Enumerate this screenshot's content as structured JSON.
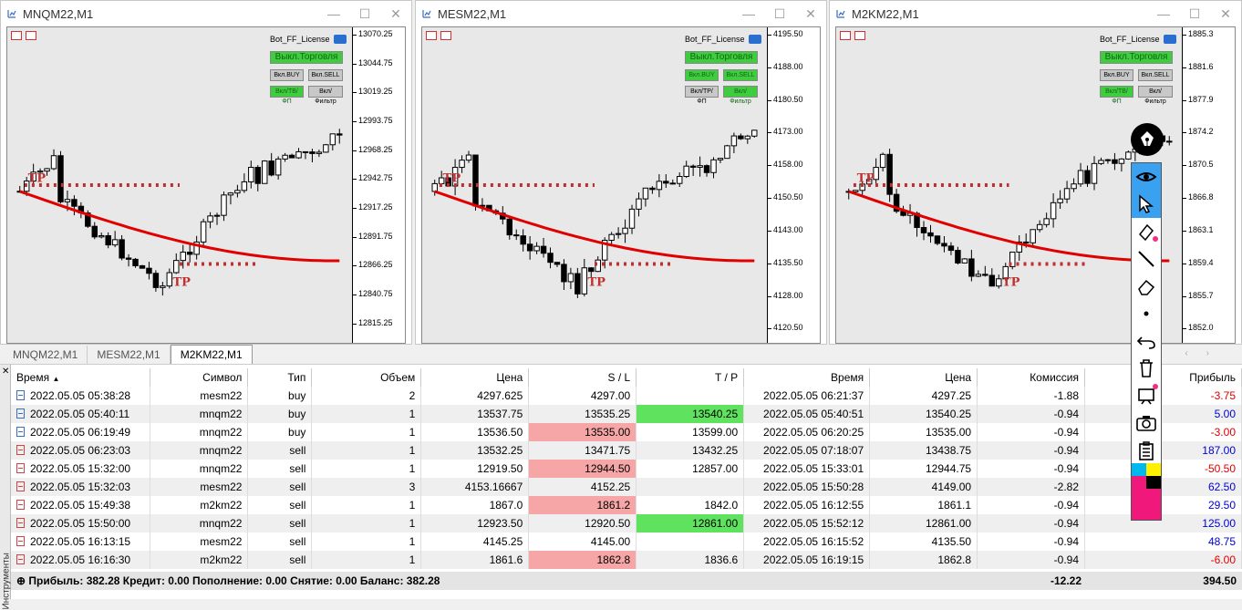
{
  "windows": [
    {
      "title": "MNQM22,M1",
      "ticks": [
        "13070.25",
        "13044.75",
        "13019.25",
        "12993.75",
        "12968.25",
        "12942.75",
        "12917.25",
        "12891.75",
        "12866.25",
        "12840.75",
        "12815.25"
      ]
    },
    {
      "title": "MESM22,M1",
      "ticks": [
        "4195.50",
        "4188.00",
        "4180.50",
        "4173.00",
        "4158.00",
        "4150.50",
        "4143.00",
        "4135.50",
        "4128.00",
        "4120.50"
      ]
    },
    {
      "title": "M2KM22,M1",
      "ticks": [
        "1885.3",
        "1881.6",
        "1877.9",
        "1874.2",
        "1870.5",
        "1866.8",
        "1863.1",
        "1859.4",
        "1855.7",
        "1852.0"
      ]
    }
  ],
  "panel": {
    "title": "Bot_FF_License",
    "trade_btn": "Выкл.Торговля",
    "buy_btn": "Вкл.BUY",
    "sell_btn": "Вкл.SELL",
    "btn_a": "Вкл/ТВ/ФП",
    "btn_b": "Вкл/Фильтр",
    "btn_c": "Вкл/ТР/ФП"
  },
  "chart_labels": {
    "tp": "TP",
    "p": "P"
  },
  "tabs": [
    "MNQM22,M1",
    "MESM22,M1",
    "M2KM22,M1"
  ],
  "active_tab": "M2KM22,M1",
  "side_label": "Инструменты",
  "columns": [
    "Время",
    "Символ",
    "Тип",
    "Объем",
    "Цена",
    "S / L",
    "T / P",
    "Время",
    "Цена",
    "Комиссия",
    "Прибыль"
  ],
  "rows": [
    {
      "t1": "2022.05.05 05:38:28",
      "sym": "mesm22",
      "type": "buy",
      "vol": "2",
      "p1": "4297.625",
      "sl": "4297.00",
      "tp": "",
      "t2": "2022.05.05 06:21:37",
      "p2": "4297.25",
      "comm": "-1.88",
      "profit": "-3.75"
    },
    {
      "t1": "2022.05.05 05:40:11",
      "sym": "mnqm22",
      "type": "buy",
      "vol": "1",
      "p1": "13537.75",
      "sl": "13535.25",
      "tp": "13540.25",
      "t2": "2022.05.05 05:40:51",
      "p2": "13540.25",
      "comm": "-0.94",
      "profit": "5.00"
    },
    {
      "t1": "2022.05.05 06:19:49",
      "sym": "mnqm22",
      "type": "buy",
      "vol": "1",
      "p1": "13536.50",
      "sl": "13535.00",
      "tp": "13599.00",
      "t2": "2022.05.05 06:20:25",
      "p2": "13535.00",
      "comm": "-0.94",
      "profit": "-3.00"
    },
    {
      "t1": "2022.05.05 06:23:03",
      "sym": "mnqm22",
      "type": "sell",
      "vol": "1",
      "p1": "13532.25",
      "sl": "13471.75",
      "tp": "13432.25",
      "t2": "2022.05.05 07:18:07",
      "p2": "13438.75",
      "comm": "-0.94",
      "profit": "187.00"
    },
    {
      "t1": "2022.05.05 15:32:00",
      "sym": "mnqm22",
      "type": "sell",
      "vol": "1",
      "p1": "12919.50",
      "sl": "12944.50",
      "tp": "12857.00",
      "t2": "2022.05.05 15:33:01",
      "p2": "12944.75",
      "comm": "-0.94",
      "profit": "-50.50"
    },
    {
      "t1": "2022.05.05 15:32:03",
      "sym": "mesm22",
      "type": "sell",
      "vol": "3",
      "p1": "4153.16667",
      "sl": "4152.25",
      "tp": "",
      "t2": "2022.05.05 15:50:28",
      "p2": "4149.00",
      "comm": "-2.82",
      "profit": "62.50"
    },
    {
      "t1": "2022.05.05 15:49:38",
      "sym": "m2km22",
      "type": "sell",
      "vol": "1",
      "p1": "1867.0",
      "sl": "1861.2",
      "tp": "1842.0",
      "t2": "2022.05.05 16:12:55",
      "p2": "1861.1",
      "comm": "-0.94",
      "profit": "29.50"
    },
    {
      "t1": "2022.05.05 15:50:00",
      "sym": "mnqm22",
      "type": "sell",
      "vol": "1",
      "p1": "12923.50",
      "sl": "12920.50",
      "tp": "12861.00",
      "t2": "2022.05.05 15:52:12",
      "p2": "12861.00",
      "comm": "-0.94",
      "profit": "125.00"
    },
    {
      "t1": "2022.05.05 16:13:15",
      "sym": "mesm22",
      "type": "sell",
      "vol": "1",
      "p1": "4145.25",
      "sl": "4145.00",
      "tp": "",
      "t2": "2022.05.05 16:15:52",
      "p2": "4135.50",
      "comm": "-0.94",
      "profit": "48.75"
    },
    {
      "t1": "2022.05.05 16:16:30",
      "sym": "m2km22",
      "type": "sell",
      "vol": "1",
      "p1": "1861.6",
      "sl": "1862.8",
      "tp": "1836.6",
      "t2": "2022.05.05 16:19:15",
      "p2": "1862.8",
      "comm": "-0.94",
      "profit": "-6.00"
    }
  ],
  "summary": {
    "text": "Прибыль: 382.28  Кредит: 0.00  Пополнение: 0.00  Снятие: 0.00  Баланс: 382.28",
    "commission": "-12.22",
    "profit": "394.50"
  },
  "colors": {
    "sl_red": "#f6a6a6",
    "tp_green": "#5fe35f",
    "neg": "#dd0000",
    "pos": "#0000d0",
    "ma": "#e00000",
    "tp_dots": "#c03030"
  },
  "toolbar_icons": [
    "pen-icon",
    "eye-icon",
    "cursor-icon",
    "marker-icon",
    "line-icon",
    "eraser-icon",
    "dot-icon",
    "undo-icon",
    "trash-icon",
    "board-icon",
    "camera-icon",
    "clipboard-icon",
    "palette-icon"
  ]
}
